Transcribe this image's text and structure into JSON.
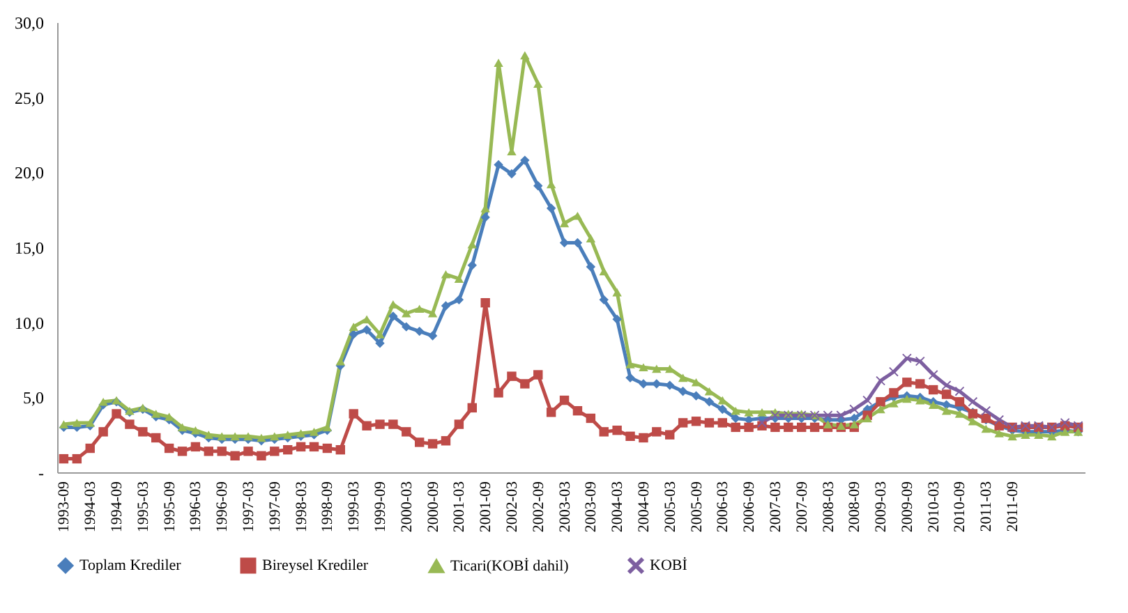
{
  "chart_data": {
    "type": "line",
    "categories": [
      "1993-09",
      null,
      "1994-03",
      null,
      "1994-09",
      null,
      "1995-03",
      null,
      "1995-09",
      null,
      "1996-03",
      null,
      "1996-09",
      null,
      "1997-03",
      null,
      "1997-09",
      null,
      "1998-03",
      null,
      "1998-09",
      null,
      "1999-03",
      null,
      "1999-09",
      null,
      "2000-03",
      null,
      "2000-09",
      null,
      "2001-03",
      null,
      "2001-09",
      null,
      "2002-03",
      null,
      "2002-09",
      null,
      "2003-03",
      null,
      "2003-09",
      null,
      "2004-03",
      null,
      "2004-09",
      null,
      "2005-03",
      null,
      "2005-09",
      null,
      "2006-03",
      null,
      "2006-09",
      null,
      "2007-03",
      null,
      "2007-09",
      null,
      "2008-03",
      null,
      "2008-09",
      null,
      "2009-03",
      null,
      "2009-09",
      null,
      "2010-03",
      null,
      "2010-09",
      null,
      "2011-03",
      null,
      "2011-09",
      null,
      null,
      null,
      null,
      null
    ],
    "series": [
      {
        "name": "Toplam Krediler",
        "color": "#4a7ebb",
        "marker": "diamond",
        "values": [
          3.0,
          3.0,
          3.1,
          4.5,
          4.7,
          4.0,
          4.2,
          3.7,
          3.5,
          2.8,
          2.6,
          2.3,
          2.2,
          2.2,
          2.2,
          2.1,
          2.2,
          2.3,
          2.4,
          2.5,
          2.8,
          7.1,
          9.2,
          9.5,
          8.6,
          10.4,
          9.7,
          9.4,
          9.1,
          11.1,
          11.5,
          13.8,
          17.0,
          20.5,
          19.9,
          20.8,
          19.1,
          17.6,
          15.3,
          15.3,
          13.7,
          11.5,
          10.2,
          6.3,
          5.9,
          5.9,
          5.8,
          5.4,
          5.1,
          4.7,
          4.2,
          3.6,
          3.5,
          3.6,
          3.6,
          3.6,
          3.6,
          3.6,
          3.5,
          3.5,
          3.6,
          4.2,
          4.7,
          5.0,
          5.1,
          5.0,
          4.7,
          4.5,
          4.3,
          4.0,
          3.5,
          3.1,
          2.8,
          2.7,
          2.7,
          2.7,
          2.8,
          2.7
        ]
      },
      {
        "name": "Bireysel Krediler",
        "color": "#be4b48",
        "marker": "square",
        "values": [
          0.9,
          0.9,
          1.6,
          2.7,
          3.9,
          3.2,
          2.7,
          2.3,
          1.6,
          1.4,
          1.7,
          1.4,
          1.4,
          1.1,
          1.4,
          1.1,
          1.4,
          1.5,
          1.7,
          1.7,
          1.6,
          1.5,
          3.9,
          3.1,
          3.2,
          3.2,
          2.7,
          2.0,
          1.9,
          2.1,
          3.2,
          4.3,
          11.3,
          5.3,
          6.4,
          5.9,
          6.5,
          4.0,
          4.8,
          4.1,
          3.6,
          2.7,
          2.8,
          2.4,
          2.3,
          2.7,
          2.5,
          3.3,
          3.4,
          3.3,
          3.3,
          3.0,
          3.0,
          3.1,
          3.0,
          3.0,
          3.0,
          3.0,
          3.0,
          3.0,
          3.0,
          3.8,
          4.7,
          5.3,
          6.0,
          5.9,
          5.5,
          5.2,
          4.7,
          3.9,
          3.6,
          3.1,
          3.0,
          3.0,
          3.0,
          3.0,
          3.1,
          3.0
        ]
      },
      {
        "name": "Ticari(KOBİ dahil)",
        "color": "#98b954",
        "marker": "triangle",
        "values": [
          3.2,
          3.3,
          3.3,
          4.7,
          4.8,
          4.1,
          4.3,
          3.9,
          3.7,
          3.0,
          2.8,
          2.5,
          2.4,
          2.4,
          2.4,
          2.3,
          2.4,
          2.5,
          2.6,
          2.7,
          3.0,
          7.4,
          9.7,
          10.2,
          9.2,
          11.2,
          10.6,
          10.9,
          10.6,
          13.2,
          12.9,
          15.2,
          17.6,
          27.3,
          21.4,
          27.8,
          25.9,
          19.2,
          16.6,
          17.1,
          15.6,
          13.4,
          12.0,
          7.2,
          7.0,
          6.9,
          6.9,
          6.3,
          6.0,
          5.4,
          4.8,
          4.1,
          4.0,
          4.0,
          4.0,
          3.9,
          3.9,
          3.8,
          3.2,
          3.1,
          3.2,
          3.6,
          4.2,
          4.6,
          4.9,
          4.8,
          4.5,
          4.1,
          3.9,
          3.4,
          2.9,
          2.6,
          2.4,
          2.5,
          2.5,
          2.4,
          2.7,
          2.7
        ]
      },
      {
        "name": "KOBİ",
        "color": "#7d5fa0",
        "marker": "cross",
        "values": [
          null,
          null,
          null,
          null,
          null,
          null,
          null,
          null,
          null,
          null,
          null,
          null,
          null,
          null,
          null,
          null,
          null,
          null,
          null,
          null,
          null,
          null,
          null,
          null,
          null,
          null,
          null,
          null,
          null,
          null,
          null,
          null,
          null,
          null,
          null,
          null,
          null,
          null,
          null,
          null,
          null,
          null,
          null,
          null,
          null,
          null,
          null,
          null,
          null,
          null,
          null,
          null,
          null,
          3.3,
          3.8,
          3.8,
          3.8,
          3.8,
          3.8,
          3.8,
          4.2,
          4.8,
          6.1,
          6.7,
          7.6,
          7.4,
          6.5,
          5.8,
          5.4,
          4.7,
          4.1,
          3.5,
          3.0,
          3.1,
          3.1,
          3.0,
          3.3,
          3.1
        ]
      }
    ],
    "ylim": [
      0,
      30
    ],
    "yticks": [
      {
        "value": 0,
        "label": "-"
      },
      {
        "value": 5,
        "label": "5,0"
      },
      {
        "value": 10,
        "label": "10,0"
      },
      {
        "value": 15,
        "label": "15,0"
      },
      {
        "value": 20,
        "label": "20,0"
      },
      {
        "value": 25,
        "label": "25,0"
      },
      {
        "value": 30,
        "label": "30,0"
      }
    ],
    "grid": false,
    "legend": "bottom",
    "line_style": "solid"
  }
}
